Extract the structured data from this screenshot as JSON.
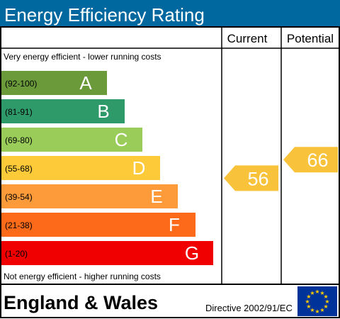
{
  "title": "Energy Efficiency Rating",
  "columns": {
    "current": "Current",
    "potential": "Potential"
  },
  "top_note": "Very energy efficient - lower running costs",
  "bottom_note": "Not energy efficient - higher running costs",
  "footer": {
    "region": "England & Wales",
    "directive": "Directive 2002/91/EC"
  },
  "colors": {
    "header": "#00689e",
    "current_arrow": "#f8c33a",
    "potential_arrow": "#f8c33a",
    "eu_flag": "#003399",
    "eu_star": "#ffcc00"
  },
  "chart_data": {
    "type": "bar",
    "title": "Energy Efficiency Rating",
    "categories": [
      "A",
      "B",
      "C",
      "D",
      "E",
      "F",
      "G"
    ],
    "ranges": [
      "(92-100)",
      "(81-91)",
      "(69-80)",
      "(55-68)",
      "(39-54)",
      "(21-38)",
      "(1-20)"
    ],
    "band_colors": [
      "#6a9a3a",
      "#2e9a6a",
      "#9acc5a",
      "#fdca3a",
      "#fd9a3a",
      "#fd6a1a",
      "#f00000"
    ],
    "current": {
      "label": "Current",
      "value": 56,
      "band": "D"
    },
    "potential": {
      "label": "Potential",
      "value": 66,
      "band": "D"
    }
  }
}
